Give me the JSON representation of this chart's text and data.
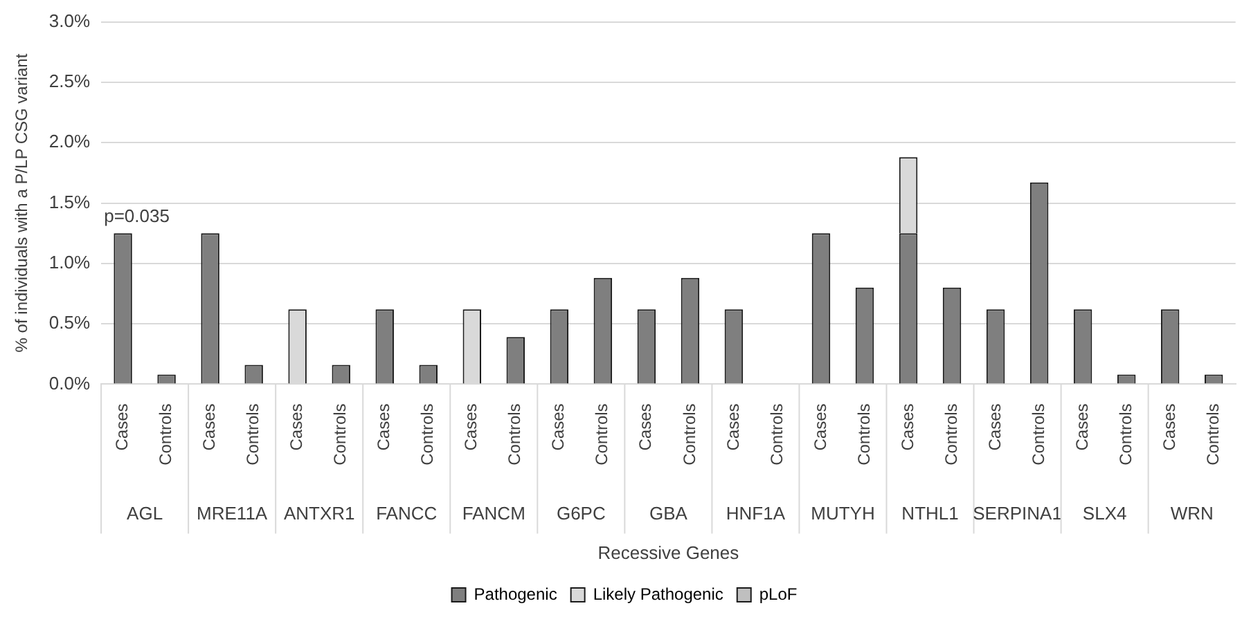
{
  "chart_data": {
    "type": "bar",
    "stacked": true,
    "ylabel": "% of individuals with a P/LP CSG variant",
    "xlabel": "Recessive Genes",
    "categories": [
      "Cases",
      "Controls",
      "Cases",
      "Controls",
      "Cases",
      "Controls",
      "Cases",
      "Controls",
      "Cases",
      "Controls",
      "Cases",
      "Controls",
      "Cases",
      "Controls",
      "Cases",
      "Controls",
      "Cases",
      "Controls",
      "Cases",
      "Controls",
      "Cases",
      "Controls",
      "Cases",
      "Controls",
      "Cases",
      "Controls"
    ],
    "series": [
      {
        "name": "Pathogenic",
        "color": "#7f7f7f",
        "values": [
          1.25,
          0.08,
          1.25,
          0.16,
          null,
          0.16,
          0.62,
          0.16,
          null,
          0.39,
          0.62,
          0.88,
          0.62,
          0.88,
          0.62,
          null,
          1.25,
          0.8,
          1.25,
          0.8,
          0.62,
          1.67,
          0.62,
          0.08,
          0.62,
          0.08
        ]
      },
      {
        "name": "Likely Pathogenic",
        "color": "#d9d9d9",
        "values": [
          null,
          null,
          null,
          null,
          0.62,
          null,
          null,
          null,
          0.62,
          null,
          null,
          null,
          null,
          null,
          null,
          null,
          null,
          null,
          0.63,
          null,
          null,
          null,
          null,
          null,
          null,
          null
        ]
      },
      {
        "name": "pLoF",
        "color": "#bfbfbf",
        "values": [
          null,
          null,
          null,
          null,
          null,
          null,
          null,
          null,
          null,
          null,
          null,
          null,
          null,
          null,
          null,
          null,
          null,
          null,
          null,
          null,
          null,
          null,
          null,
          null,
          null,
          null
        ]
      }
    ],
    "ylim": [
      0,
      3
    ],
    "yticks": [
      {
        "value": 0,
        "label": "0.0%"
      },
      {
        "value": 0.5,
        "label": "0.5%"
      },
      {
        "value": 1,
        "label": "1.0%"
      },
      {
        "value": 1.5,
        "label": "1.5%"
      },
      {
        "value": 2,
        "label": "2.0%"
      },
      {
        "value": 2.5,
        "label": "2.5%"
      },
      {
        "value": 3,
        "label": "3.0%"
      }
    ],
    "grid": "y",
    "legend": "bottom",
    "annotations": [
      {
        "text": "p=0.035",
        "y": 1.25
      },
      "AGL",
      "MRE11A",
      "ANTXR1",
      "FANCC",
      "FANCM",
      "G6PC",
      "GBA",
      "HNF1A",
      "MUTYH",
      "NTHL1",
      "SERPINA1",
      "SLX4",
      "WRN"
    ]
  }
}
